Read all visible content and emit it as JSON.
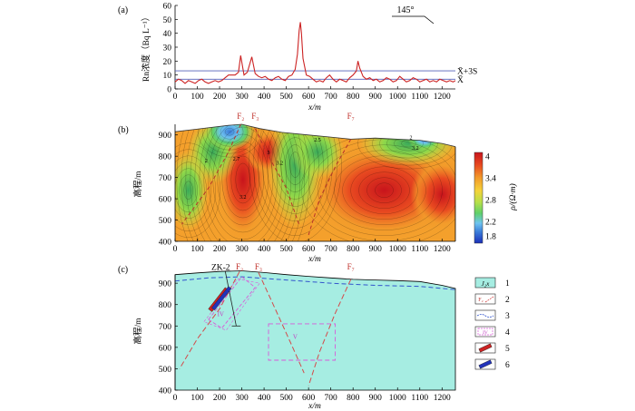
{
  "chart_data": [
    {
      "panel": "(a)",
      "type": "line",
      "ylabel": "Rn浓度（Bq L⁻¹）",
      "xlabel": "x/m",
      "xlim": [
        0,
        1260
      ],
      "ylim": [
        0,
        60
      ],
      "xticks": [
        0,
        100,
        200,
        300,
        400,
        500,
        600,
        700,
        800,
        900,
        1000,
        1100,
        1200
      ],
      "yticks": [
        0,
        10,
        20,
        30,
        40,
        50,
        60
      ],
      "direction_label": "145°",
      "thresholds": [
        {
          "name": "X̄+3S",
          "value": 13
        },
        {
          "name": "X̄",
          "value": 7
        }
      ],
      "series": [
        {
          "color": "#cc2222",
          "points": [
            [
              0,
              5
            ],
            [
              15,
              7
            ],
            [
              30,
              6
            ],
            [
              45,
              4
            ],
            [
              60,
              6
            ],
            [
              75,
              5
            ],
            [
              90,
              4
            ],
            [
              105,
              6
            ],
            [
              120,
              7
            ],
            [
              135,
              5
            ],
            [
              150,
              4
            ],
            [
              165,
              5
            ],
            [
              180,
              6
            ],
            [
              195,
              5
            ],
            [
              210,
              6
            ],
            [
              225,
              8
            ],
            [
              240,
              10
            ],
            [
              255,
              10
            ],
            [
              270,
              10
            ],
            [
              285,
              12
            ],
            [
              295,
              24
            ],
            [
              310,
              10
            ],
            [
              325,
              12
            ],
            [
              345,
              23
            ],
            [
              360,
              11
            ],
            [
              375,
              9
            ],
            [
              390,
              8
            ],
            [
              405,
              9
            ],
            [
              420,
              7
            ],
            [
              435,
              6
            ],
            [
              450,
              8
            ],
            [
              465,
              9
            ],
            [
              480,
              7
            ],
            [
              495,
              6
            ],
            [
              510,
              9
            ],
            [
              525,
              10
            ],
            [
              540,
              14
            ],
            [
              550,
              25
            ],
            [
              558,
              42
            ],
            [
              563,
              48
            ],
            [
              568,
              40
            ],
            [
              575,
              22
            ],
            [
              590,
              10
            ],
            [
              605,
              9
            ],
            [
              620,
              7
            ],
            [
              635,
              5
            ],
            [
              650,
              6
            ],
            [
              665,
              5
            ],
            [
              680,
              8
            ],
            [
              695,
              10
            ],
            [
              710,
              7
            ],
            [
              725,
              5
            ],
            [
              740,
              7
            ],
            [
              755,
              6
            ],
            [
              770,
              5
            ],
            [
              785,
              8
            ],
            [
              800,
              10
            ],
            [
              815,
              13
            ],
            [
              822,
              20
            ],
            [
              830,
              15
            ],
            [
              845,
              9
            ],
            [
              860,
              7
            ],
            [
              875,
              8
            ],
            [
              890,
              6
            ],
            [
              905,
              7
            ],
            [
              920,
              5
            ],
            [
              935,
              6
            ],
            [
              950,
              8
            ],
            [
              965,
              7
            ],
            [
              980,
              5
            ],
            [
              995,
              6
            ],
            [
              1010,
              9
            ],
            [
              1025,
              7
            ],
            [
              1040,
              5
            ],
            [
              1055,
              6
            ],
            [
              1070,
              8
            ],
            [
              1085,
              7
            ],
            [
              1100,
              5
            ],
            [
              1115,
              6
            ],
            [
              1130,
              7
            ],
            [
              1145,
              5
            ],
            [
              1160,
              6
            ],
            [
              1175,
              5
            ],
            [
              1190,
              7
            ],
            [
              1205,
              6
            ],
            [
              1220,
              5
            ],
            [
              1235,
              6
            ],
            [
              1250,
              5
            ],
            [
              1260,
              6
            ]
          ]
        }
      ]
    },
    {
      "panel": "(b)",
      "type": "heatmap",
      "ylabel": "高程/m",
      "xlabel": "x/m",
      "xlim": [
        0,
        1260
      ],
      "ylim": [
        400,
        950
      ],
      "xticks": [
        0,
        100,
        200,
        300,
        400,
        500,
        600,
        700,
        800,
        900,
        1000,
        1100,
        1200
      ],
      "yticks": [
        400,
        500,
        600,
        700,
        800,
        900
      ],
      "colorbar_label": "ρ/(Ω·m)",
      "colorbar_ticks": [
        1.8,
        2.2,
        2.8,
        3.4,
        4
      ],
      "faults": [
        {
          "name": "F₂",
          "x": 295
        },
        {
          "name": "F₃",
          "x": 360
        },
        {
          "name": "F₇",
          "x": 790
        }
      ],
      "contour_labels": [
        "2",
        "2.7",
        "3.2",
        "3",
        "3.2",
        "2.5",
        "2",
        "3.2"
      ]
    },
    {
      "panel": "(c)",
      "type": "diagram",
      "ylabel": "高程/m",
      "xlabel": "x/m",
      "xlim": [
        0,
        1260
      ],
      "ylim": [
        400,
        960
      ],
      "xticks": [
        0,
        100,
        200,
        300,
        400,
        500,
        600,
        700,
        800,
        900,
        1000,
        1100,
        1200
      ],
      "yticks": [
        400,
        500,
        600,
        700,
        800,
        900
      ],
      "borehole": "ZK-2",
      "zones": [
        "IV",
        "V"
      ],
      "faults": [
        {
          "name": "F₂",
          "x": 290
        },
        {
          "name": "F₃",
          "x": 375
        },
        {
          "name": "F₇",
          "x": 790
        }
      ],
      "legend": [
        {
          "number": "1",
          "symbol": "J₂x"
        },
        {
          "number": "2",
          "symbol": "F₂"
        },
        {
          "number": "3",
          "symbol": ""
        },
        {
          "number": "4",
          "symbol": "IV"
        },
        {
          "number": "5",
          "symbol": ""
        },
        {
          "number": "6",
          "symbol": ""
        }
      ],
      "colors": {
        "formation": "#a6ede2",
        "fault": "#d44a4a",
        "water": "#3355cc",
        "zone": "#d85ad8"
      }
    }
  ]
}
